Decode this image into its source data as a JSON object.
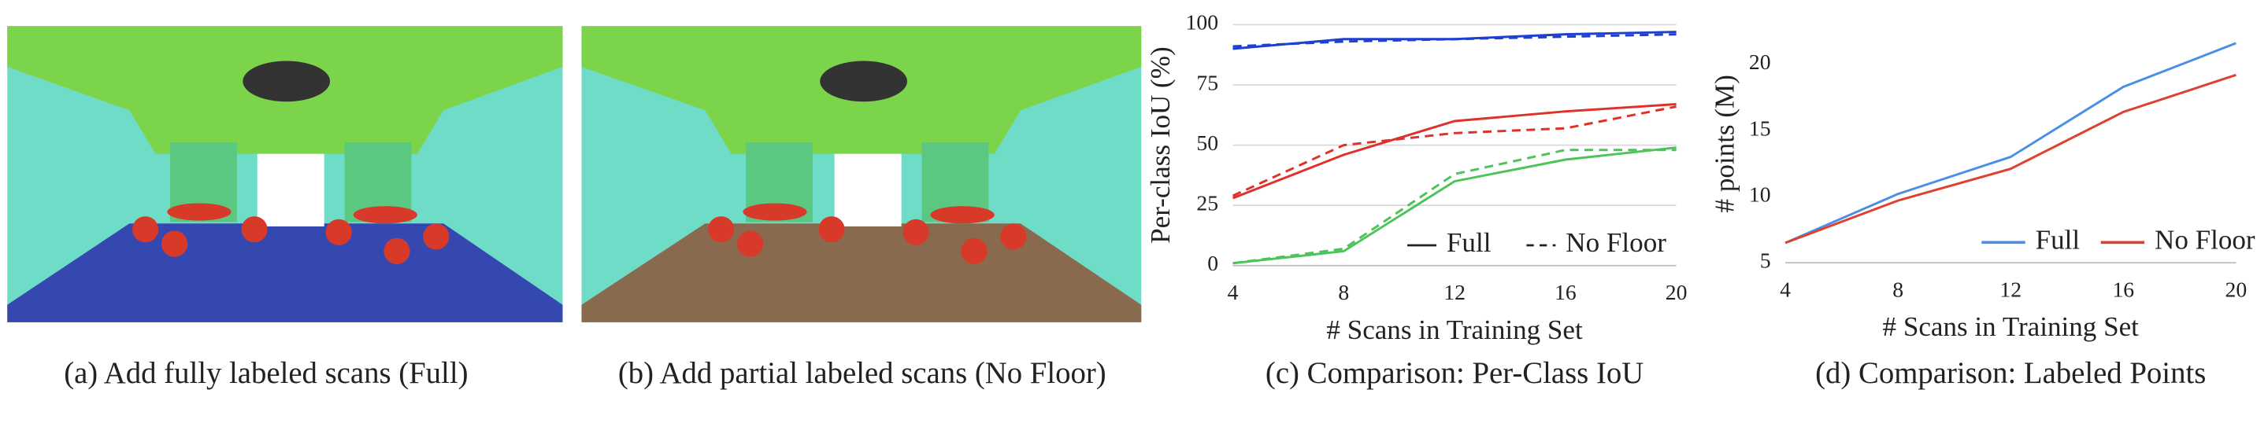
{
  "panels": [
    {
      "caption": "(a) Add fully labeled scans (Full)"
    },
    {
      "caption": "(b) Add partial labeled scans (No Floor)"
    }
  ],
  "chart_data": [
    {
      "type": "line",
      "caption": "(c) Comparison: Per-Class IoU",
      "x_label": "# Scans in Training Set",
      "y_label": "Per-class IoU (%)",
      "x": [
        4,
        8,
        12,
        16,
        20
      ],
      "xlim": [
        4,
        20
      ],
      "xticks": [
        4,
        8,
        12,
        16,
        20
      ],
      "ylim": [
        0,
        100
      ],
      "yticks": [
        0,
        25,
        50,
        75,
        100
      ],
      "grid": true,
      "legend_position": "lower right",
      "legend": [
        {
          "name": "Full",
          "dashed": false
        },
        {
          "name": "No Floor",
          "dashed": true
        }
      ],
      "series": [
        {
          "color": "#1f3fd0",
          "dashed": false,
          "values": [
            90,
            94,
            94,
            96,
            97
          ]
        },
        {
          "color": "#1f3fd0",
          "dashed": true,
          "values": [
            91,
            93,
            94,
            95,
            96
          ]
        },
        {
          "color": "#e0302a",
          "dashed": false,
          "values": [
            28,
            46,
            60,
            64,
            67
          ]
        },
        {
          "color": "#e0302a",
          "dashed": true,
          "values": [
            29,
            50,
            55,
            57,
            66
          ]
        },
        {
          "color": "#4cc45a",
          "dashed": false,
          "values": [
            1,
            6,
            35,
            44,
            49
          ]
        },
        {
          "color": "#4cc45a",
          "dashed": true,
          "values": [
            1,
            7,
            38,
            48,
            48
          ]
        }
      ]
    },
    {
      "type": "line",
      "caption": "(d) Comparison: Labeled Points",
      "x_label": "# Scans in Training Set",
      "y_label": "# points (M)",
      "x": [
        4,
        8,
        12,
        16,
        20
      ],
      "xlim": [
        4,
        20
      ],
      "xticks": [
        4,
        8,
        12,
        16,
        20
      ],
      "ylim": [
        5,
        23
      ],
      "yticks": [
        5,
        10,
        15,
        20
      ],
      "grid": false,
      "legend_position": "lower right",
      "series": [
        {
          "name": "Full",
          "color": "#4a8ee6",
          "dashed": false,
          "values": [
            6.5,
            10.2,
            13,
            18.3,
            21.6
          ]
        },
        {
          "name": "No Floor",
          "color": "#e0402e",
          "dashed": false,
          "values": [
            6.5,
            9.7,
            12.1,
            16.4,
            19.2
          ]
        }
      ]
    }
  ]
}
